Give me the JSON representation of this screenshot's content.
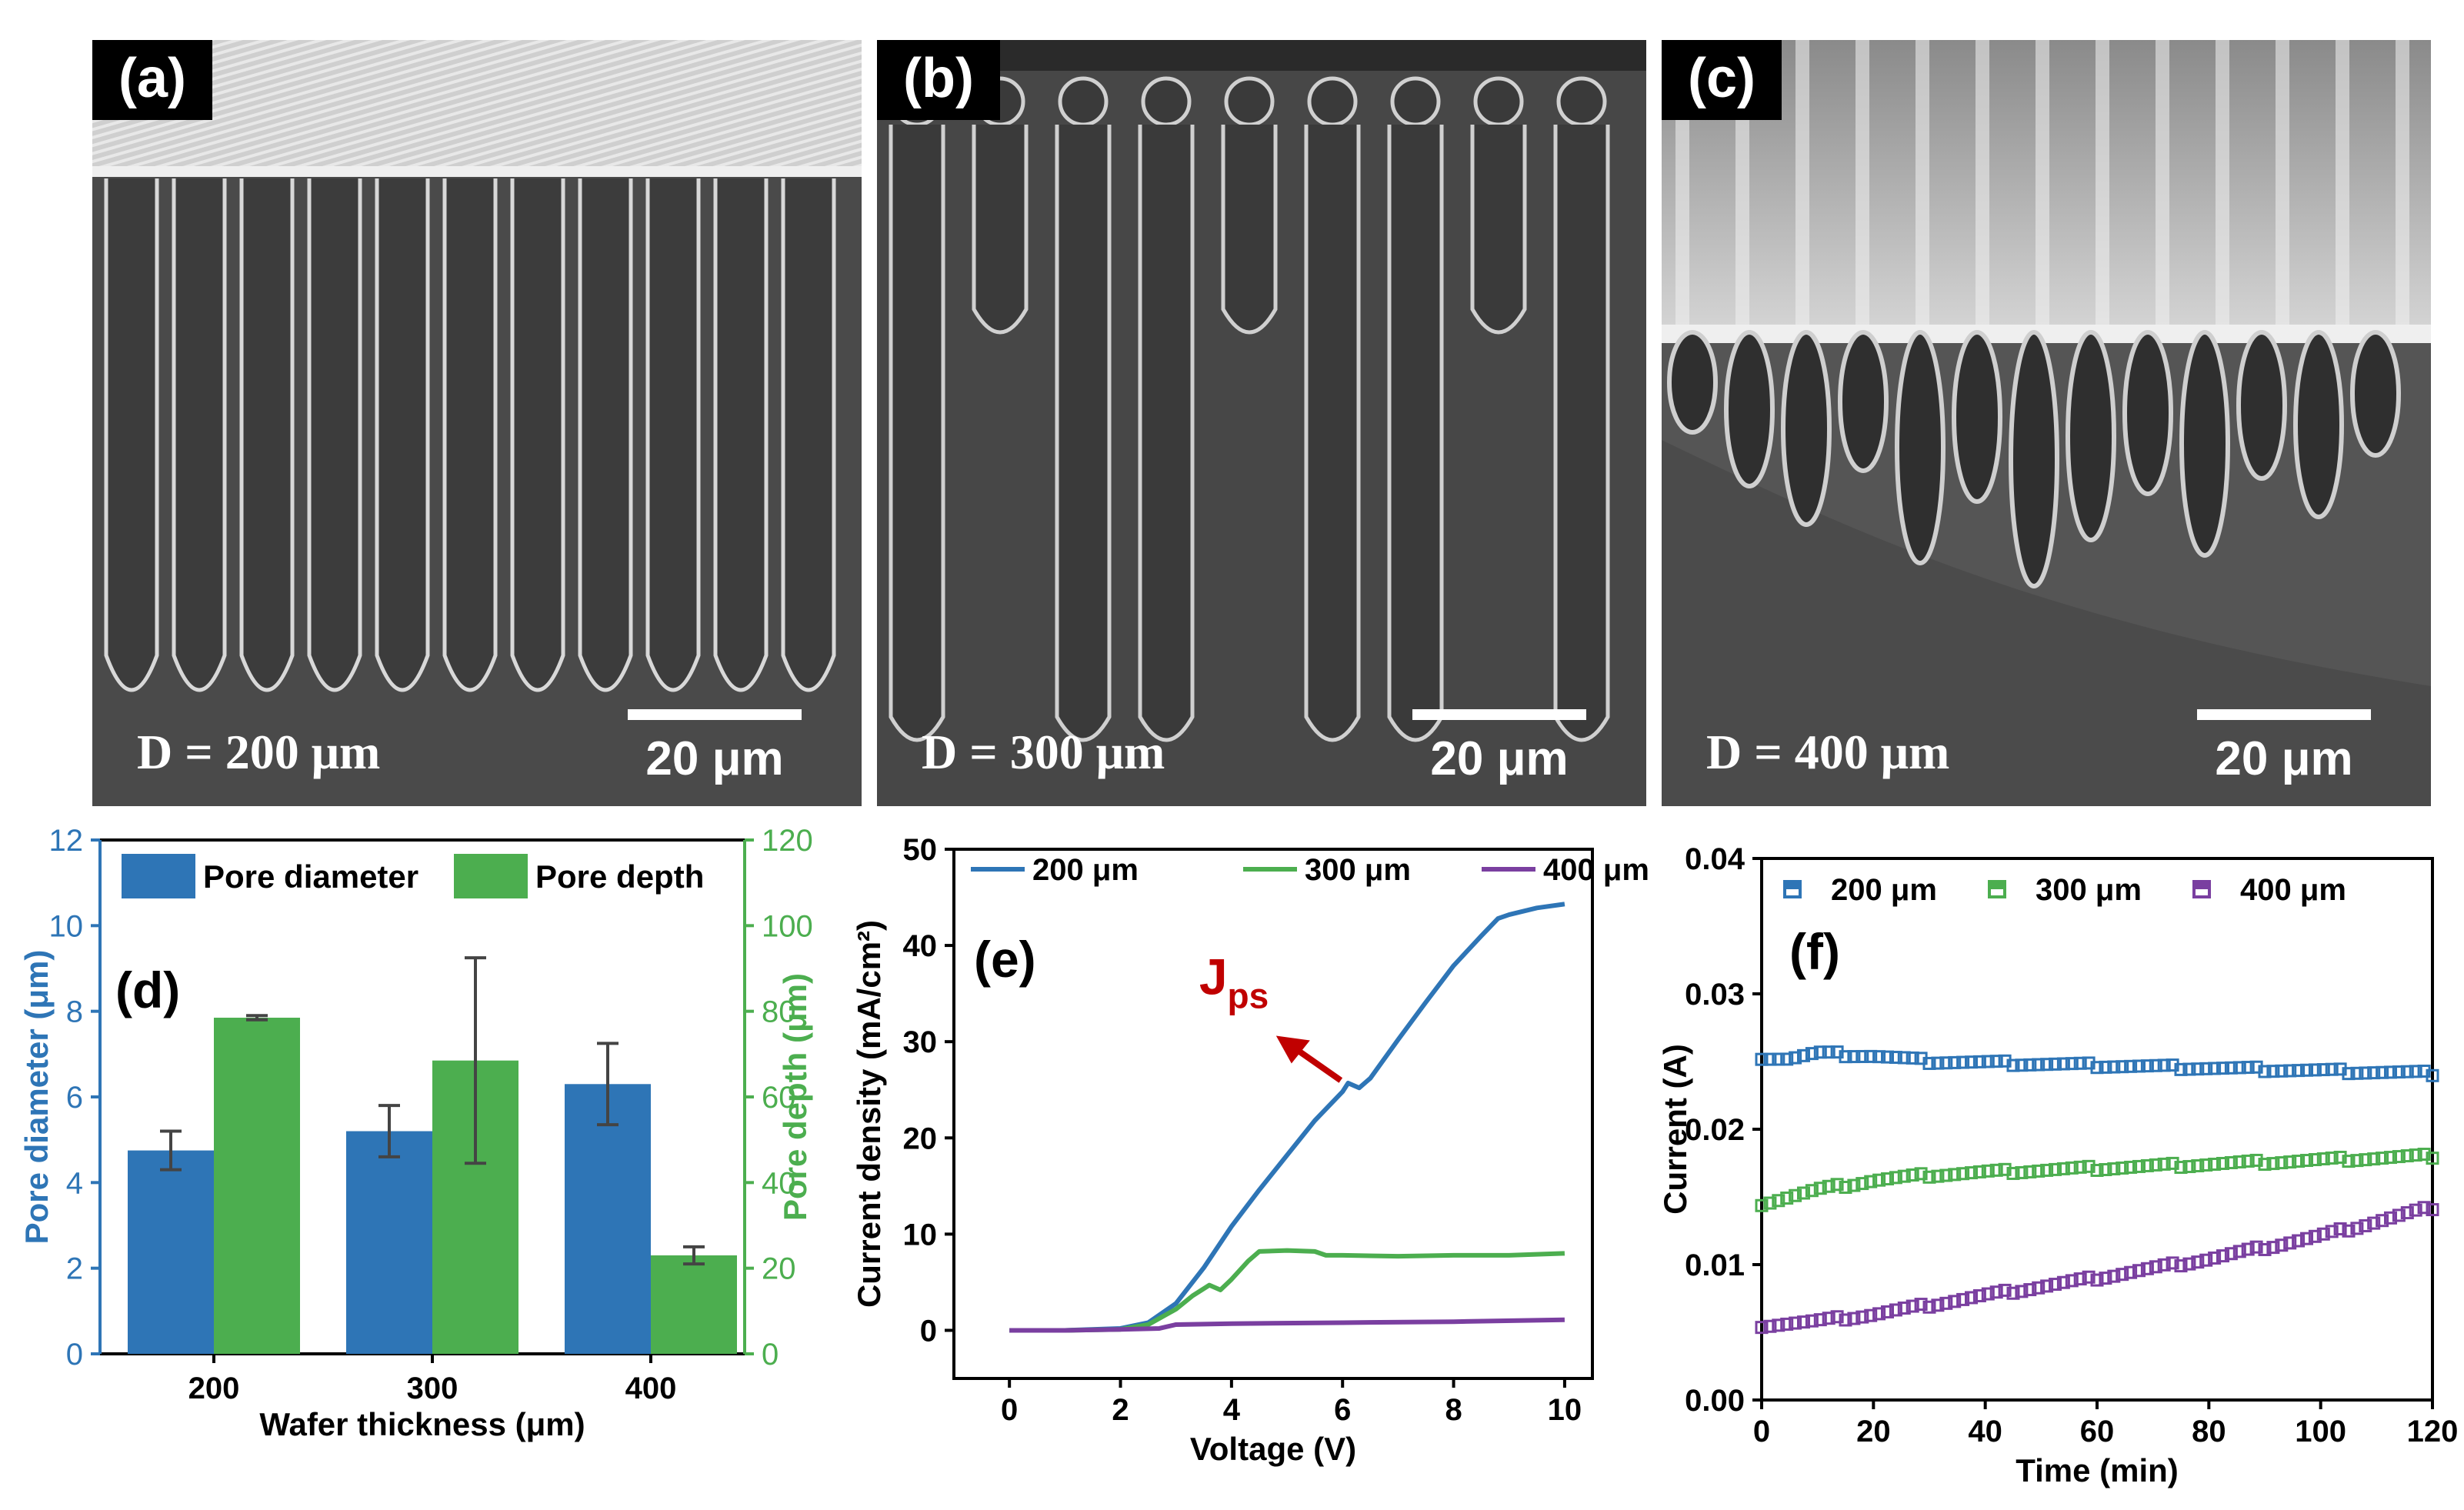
{
  "sem_panels": [
    {
      "label": "(a)",
      "thickness": "D = 200 μm",
      "scale_bar": "20 μm"
    },
    {
      "label": "(b)",
      "thickness": "D = 300 μm",
      "scale_bar": "20 μm"
    },
    {
      "label": "(c)",
      "thickness": "D = 400 μm",
      "scale_bar": "20 μm"
    }
  ],
  "colors": {
    "blue": "#2e75b6",
    "green": "#4cae4f",
    "purple": "#7a3fa0",
    "red": "#c00000"
  },
  "chart_data": [
    {
      "type": "bar",
      "panel_label": "(d)",
      "categories": [
        "200",
        "300",
        "400"
      ],
      "series": [
        {
          "name": "Pore diameter",
          "axis": "left",
          "values": [
            4.75,
            5.2,
            6.3
          ],
          "errors": [
            0.45,
            0.6,
            0.95
          ]
        },
        {
          "name": "Pore depth",
          "axis": "right",
          "values": [
            78.5,
            68.5,
            23
          ],
          "errors": [
            0.5,
            24,
            2
          ]
        }
      ],
      "xlabel": "Wafer thickness (μm)",
      "ylabel_left": "Pore diameter (μm)",
      "ylabel_right": "Pore depth (μm)",
      "ylim_left": [
        0,
        12
      ],
      "ylim_right": [
        0,
        120
      ],
      "yticks_left": [
        "0",
        "2",
        "4",
        "6",
        "8",
        "10",
        "12"
      ],
      "yticks_right": [
        "0",
        "20",
        "40",
        "60",
        "80",
        "100",
        "120"
      ],
      "legend": "top"
    },
    {
      "type": "line",
      "panel_label": "(e)",
      "xlabel": "Voltage (V)",
      "ylabel": "Current density (mA/cm²)",
      "xlim": [
        -1,
        10.5
      ],
      "ylim": [
        -5,
        50
      ],
      "xticks": [
        "0",
        "2",
        "4",
        "6",
        "8",
        "10"
      ],
      "yticks": [
        "0",
        "10",
        "20",
        "30",
        "40",
        "50"
      ],
      "annotation": {
        "text": "J",
        "subscript": "ps",
        "x": 6.05,
        "y": 25.5
      },
      "series": [
        {
          "name": "200 μm",
          "x": [
            0,
            1,
            2,
            2.5,
            3,
            3.5,
            4,
            4.5,
            5,
            5.5,
            6,
            6.1,
            6.3,
            6.5,
            7,
            7.5,
            8,
            8.5,
            8.8,
            9,
            9.5,
            10
          ],
          "y": [
            0,
            0,
            0.2,
            0.8,
            2.8,
            6.5,
            10.8,
            14.6,
            18.2,
            21.8,
            24.8,
            25.7,
            25.2,
            26.2,
            30.2,
            34.1,
            37.9,
            41,
            42.8,
            43.2,
            43.9,
            44.3
          ]
        },
        {
          "name": "300 μm",
          "x": [
            0,
            1,
            2,
            2.5,
            3,
            3.3,
            3.6,
            3.8,
            4,
            4.3,
            4.5,
            5,
            5.5,
            5.7,
            6,
            7,
            8,
            9,
            10
          ],
          "y": [
            0,
            0,
            0.1,
            0.6,
            2.2,
            3.6,
            4.7,
            4.2,
            5.3,
            7.2,
            8.2,
            8.3,
            8.2,
            7.8,
            7.8,
            7.7,
            7.8,
            7.8,
            8
          ]
        },
        {
          "name": "400 μm",
          "x": [
            0,
            1,
            2,
            2.7,
            3,
            4,
            6,
            8,
            10
          ],
          "y": [
            0,
            0,
            0.1,
            0.2,
            0.6,
            0.7,
            0.8,
            0.9,
            1.1
          ]
        }
      ],
      "legend": "top"
    },
    {
      "type": "scatter",
      "panel_label": "(f)",
      "xlabel": "Time (min)",
      "ylabel": "Current (A)",
      "xlim": [
        0,
        120
      ],
      "ylim": [
        0,
        0.04
      ],
      "xticks": [
        "0",
        "20",
        "40",
        "60",
        "80",
        "100",
        "120"
      ],
      "yticks": [
        "0.00",
        "0.01",
        "0.02",
        "0.03",
        "0.04"
      ],
      "series": [
        {
          "name": "200 μm",
          "x": [
            0,
            5,
            10,
            20,
            30,
            40,
            60,
            80,
            100,
            120
          ],
          "y": [
            0.0253,
            0.0252,
            0.0256,
            0.0254,
            0.025,
            0.0249,
            0.0247,
            0.0245,
            0.0243,
            0.0241
          ]
        },
        {
          "name": "300 μm",
          "x": [
            0,
            10,
            20,
            30,
            40,
            60,
            80,
            100,
            120
          ],
          "y": [
            0.0145,
            0.0155,
            0.0162,
            0.0166,
            0.0168,
            0.0171,
            0.0174,
            0.0177,
            0.018
          ]
        },
        {
          "name": "400 μm",
          "x": [
            0,
            10,
            20,
            40,
            60,
            80,
            100,
            120
          ],
          "y": [
            0.0055,
            0.0058,
            0.0063,
            0.0077,
            0.009,
            0.0104,
            0.0121,
            0.0142
          ]
        }
      ],
      "legend": "top"
    }
  ]
}
